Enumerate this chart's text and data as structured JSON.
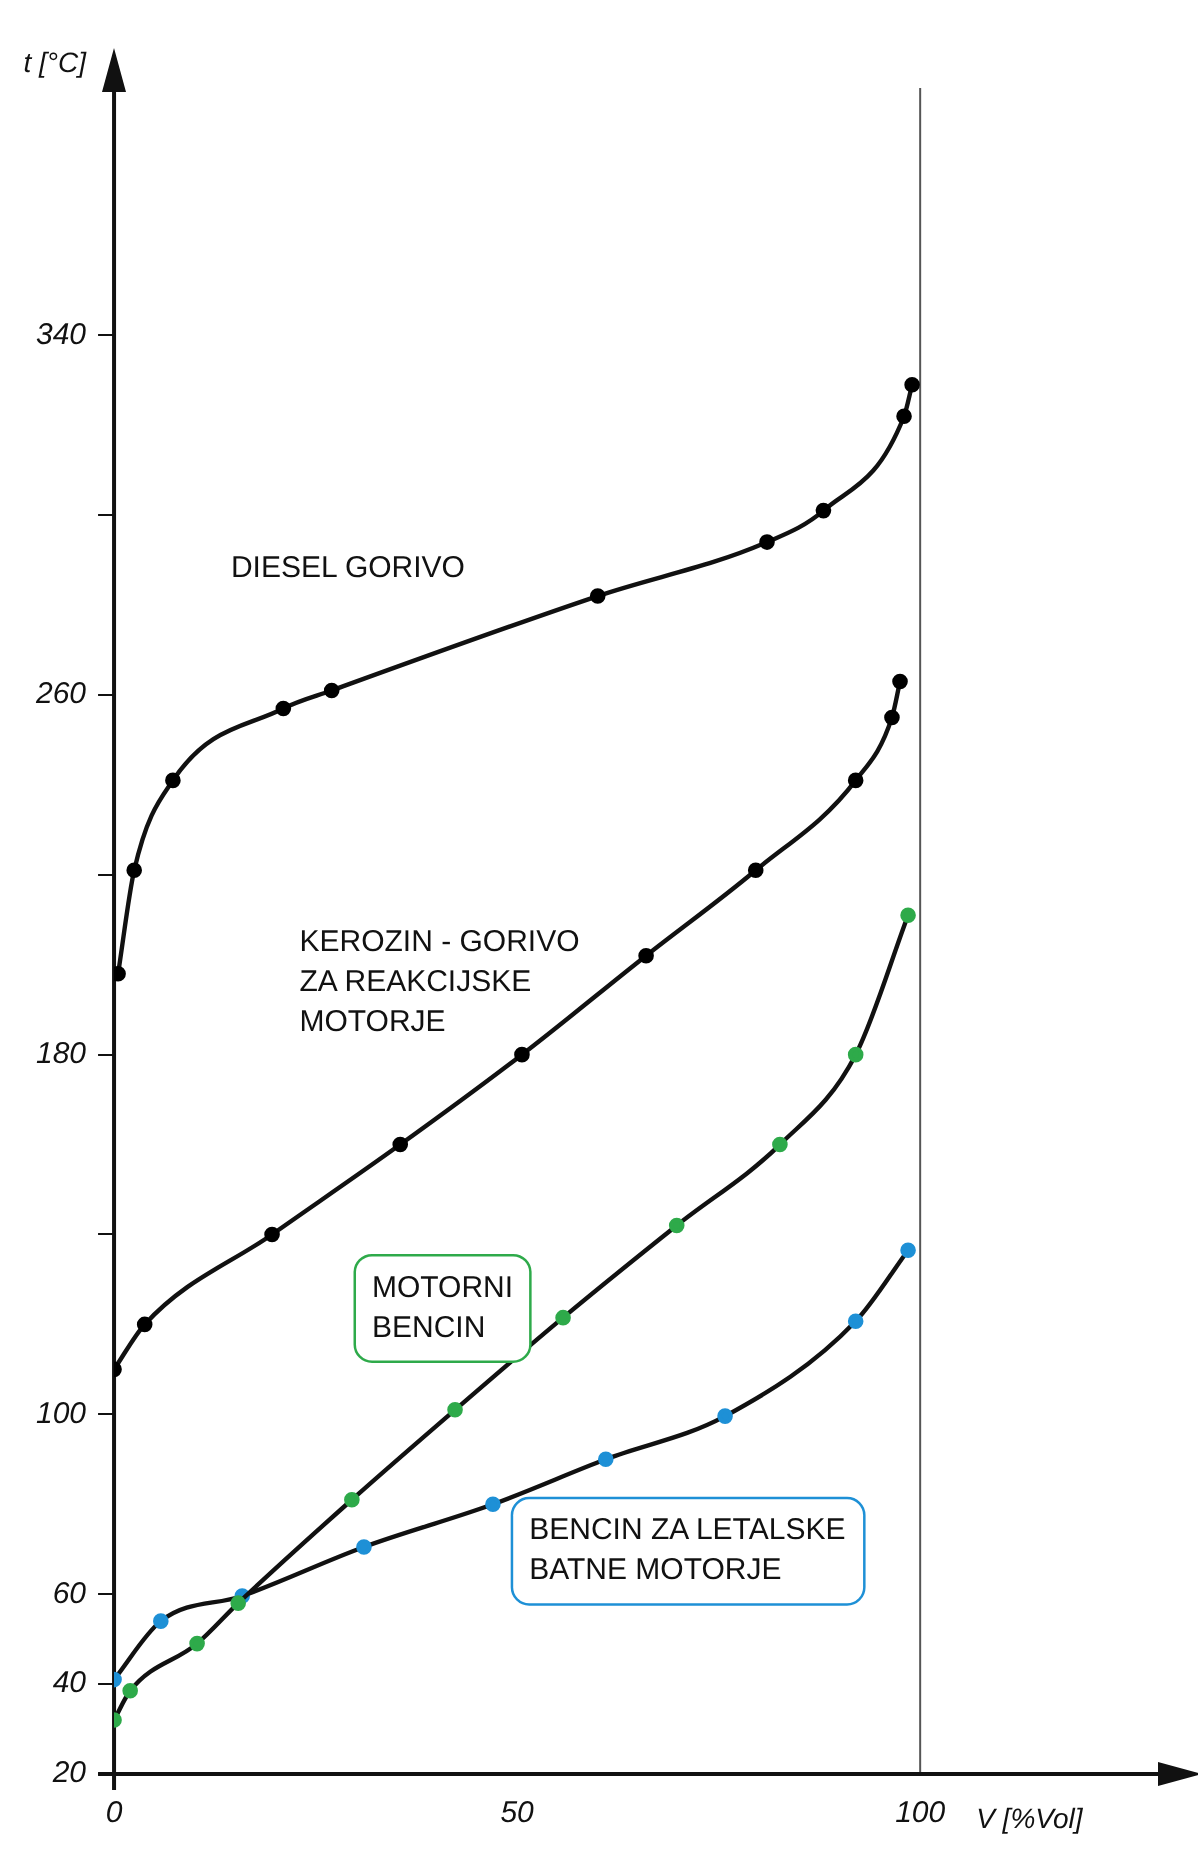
{
  "chart_data": {
    "type": "line",
    "xlabel": "V [%Vol]",
    "ylabel": "t [°C]",
    "xlim": [
      0,
      130
    ],
    "xticks": [
      0,
      50,
      100
    ],
    "ylim": [
      20,
      395
    ],
    "yticks": [
      20,
      40,
      60,
      100,
      {
        "value": 140,
        "label": null
      },
      180,
      {
        "value": 220,
        "label": null
      },
      260,
      {
        "value": 300,
        "label": null
      },
      340
    ],
    "grid": false,
    "legend": false,
    "marker": "circle",
    "line_style": "solid",
    "ref_lines": [
      {
        "axis": "x",
        "value": 100,
        "label": null,
        "color": "#555555"
      }
    ],
    "series": [
      {
        "name": "DIESEL GORIVO",
        "color": "#000000",
        "x": [
          0.5,
          2.5,
          7.3,
          21,
          27,
          60,
          81,
          88,
          98,
          99
        ],
        "values": [
          198,
          221,
          241,
          257,
          261,
          282,
          294,
          301,
          322,
          329
        ]
      },
      {
        "name": "KEROZIN - GORIVO ZA REAKCIJSKE MOTORJE",
        "color": "#000000",
        "x": [
          0,
          3.8,
          19.6,
          35.5,
          50.6,
          66,
          79.6,
          92,
          96.5,
          97.5
        ],
        "values": [
          110,
          120,
          140,
          160,
          180,
          202,
          221,
          241,
          255,
          263
        ]
      },
      {
        "name": "MOTORNI BENCIN",
        "color": "#2eaa4a",
        "x": [
          0,
          2,
          10.3,
          15.4,
          29.5,
          42.3,
          55.7,
          69.8,
          82.6,
          92,
          98.5
        ],
        "values": [
          32,
          38.5,
          49,
          58,
          81,
          101,
          121.5,
          142,
          160,
          180,
          211
        ]
      },
      {
        "name": "BENCIN ZA LETALSKE BATNE MOTORJE",
        "color": "#1e90d6",
        "x": [
          0,
          5.8,
          15.9,
          31,
          47,
          61,
          75.8,
          92,
          98.5
        ],
        "values": [
          41,
          54,
          59.6,
          70.5,
          80,
          90,
          99.6,
          120.7,
          136.5
        ]
      }
    ]
  }
}
